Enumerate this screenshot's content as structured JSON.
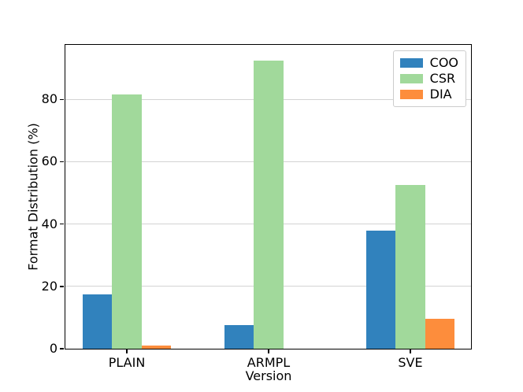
{
  "figure": {
    "background": "#ffffff",
    "spine_color": "#000000",
    "grid_color": "#d3d3d3"
  },
  "chart_data": {
    "type": "bar",
    "title": "",
    "categories": [
      "PLAIN",
      "ARMPL",
      "SVE"
    ],
    "series": [
      {
        "name": "COO",
        "color": "#3182bd",
        "values": [
          17.4,
          7.5,
          37.9
        ]
      },
      {
        "name": "CSR",
        "color": "#a1d99b",
        "values": [
          81.7,
          92.5,
          52.6
        ]
      },
      {
        "name": "DIA",
        "color": "#fd8d3c",
        "values": [
          0.9,
          0.0,
          9.5
        ]
      }
    ],
    "xlabel": "Version",
    "ylabel": "Format Distribution (%)",
    "yticks": [
      0,
      20,
      40,
      60,
      80
    ],
    "ylim": [
      0,
      97.5
    ],
    "grid": true,
    "legend_position": "upper right"
  }
}
